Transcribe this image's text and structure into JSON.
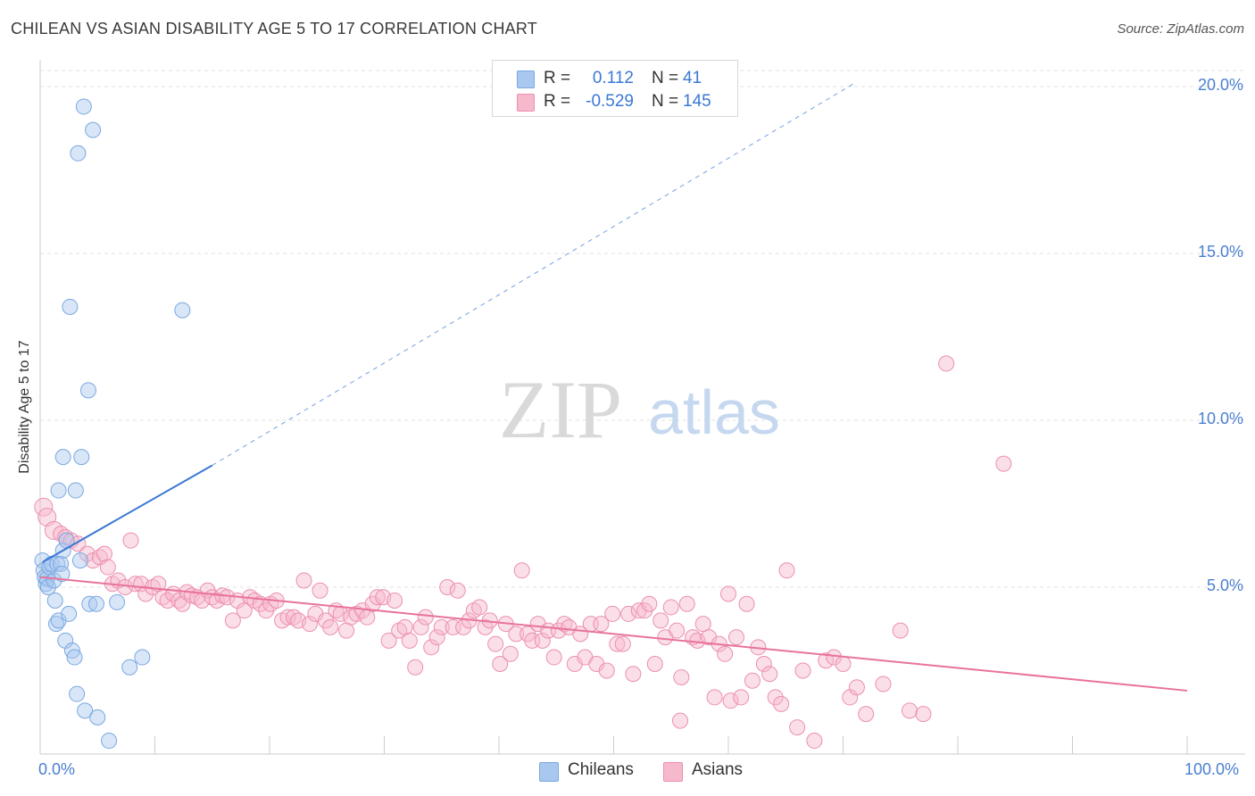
{
  "title": "CHILEAN VS ASIAN DISABILITY AGE 5 TO 17 CORRELATION CHART",
  "source": "Source: ZipAtlas.com",
  "watermark": {
    "zip": "ZIP",
    "atlas": "atlas"
  },
  "legend": {
    "rows": [
      {
        "label": "R =",
        "r": "0.112",
        "n_label": "N =",
        "n": "41",
        "color": "#a9c8f0",
        "border": "#7aa8e0"
      },
      {
        "label": "R =",
        "r": "-0.529",
        "n_label": "N =",
        "n": "145",
        "color": "#f6b8cb",
        "border": "#ec8fae"
      }
    ]
  },
  "bottom_legend": [
    {
      "label": "Chileans",
      "color": "#a9c8f0",
      "border": "#7aa8e0"
    },
    {
      "label": "Asians",
      "color": "#f6b8cb",
      "border": "#ec8fae"
    }
  ],
  "colors": {
    "blue": "#3a78d4",
    "pink": "#e8739c",
    "tick_text": "#4a7fd0",
    "grid": "#e2e2e2"
  },
  "chart_data": {
    "type": "scatter",
    "title": "CHILEAN VS ASIAN DISABILITY AGE 5 TO 17 CORRELATION CHART",
    "xlabel": "",
    "ylabel": "Disability Age 5 to 17",
    "xlim": [
      0,
      100
    ],
    "ylim": [
      0,
      20
    ],
    "x_tick_labels": [
      "0.0%",
      "100.0%"
    ],
    "y_ticks": [
      5,
      10,
      15,
      20
    ],
    "y_tick_labels": [
      "5.0%",
      "10.0%",
      "15.0%",
      "20.0%"
    ],
    "series": [
      {
        "name": "Chileans",
        "r": 0.112,
        "n": 41,
        "trend": {
          "x0": 0.2,
          "y0": 5.75,
          "x1": 15,
          "y1": 8.65,
          "x_dash_end": 71,
          "y_dash_end": 20.1
        },
        "points": [
          [
            0.2,
            5.8
          ],
          [
            0.3,
            5.5
          ],
          [
            0.4,
            5.3
          ],
          [
            0.5,
            5.1
          ],
          [
            0.6,
            5.25
          ],
          [
            0.7,
            5.0
          ],
          [
            0.8,
            5.6
          ],
          [
            1.0,
            5.7
          ],
          [
            1.2,
            5.2
          ],
          [
            1.3,
            4.6
          ],
          [
            1.4,
            3.9
          ],
          [
            1.5,
            5.7
          ],
          [
            1.6,
            4.0
          ],
          [
            1.8,
            5.7
          ],
          [
            1.9,
            5.4
          ],
          [
            2.0,
            6.1
          ],
          [
            2.2,
            3.4
          ],
          [
            2.3,
            6.4
          ],
          [
            2.5,
            4.2
          ],
          [
            2.6,
            13.4
          ],
          [
            2.8,
            3.1
          ],
          [
            3.0,
            2.9
          ],
          [
            3.2,
            1.8
          ],
          [
            3.3,
            18.0
          ],
          [
            3.5,
            5.8
          ],
          [
            3.6,
            8.9
          ],
          [
            3.9,
            1.3
          ],
          [
            4.2,
            10.9
          ],
          [
            4.3,
            4.5
          ],
          [
            4.6,
            18.7
          ],
          [
            4.9,
            4.5
          ],
          [
            5.0,
            1.1
          ],
          [
            3.8,
            19.4
          ],
          [
            2.0,
            8.9
          ],
          [
            1.6,
            7.9
          ],
          [
            3.1,
            7.9
          ],
          [
            6.0,
            0.4
          ],
          [
            6.7,
            4.55
          ],
          [
            7.8,
            2.6
          ],
          [
            8.9,
            2.9
          ],
          [
            12.4,
            13.3
          ]
        ]
      },
      {
        "name": "Asians",
        "r": -0.529,
        "n": 145,
        "trend": {
          "x0": 0,
          "y0": 5.3,
          "x1": 100,
          "y1": 1.9
        },
        "points": [
          [
            0.3,
            7.4
          ],
          [
            0.6,
            7.1
          ],
          [
            1.2,
            6.7
          ],
          [
            1.8,
            6.6
          ],
          [
            2.2,
            6.5
          ],
          [
            2.7,
            6.4
          ],
          [
            3.3,
            6.3
          ],
          [
            4.1,
            6.0
          ],
          [
            4.6,
            5.8
          ],
          [
            5.2,
            5.9
          ],
          [
            5.6,
            6.0
          ],
          [
            5.9,
            5.6
          ],
          [
            6.3,
            5.1
          ],
          [
            6.8,
            5.2
          ],
          [
            7.4,
            5.0
          ],
          [
            7.9,
            6.4
          ],
          [
            8.3,
            5.1
          ],
          [
            8.8,
            5.1
          ],
          [
            9.2,
            4.8
          ],
          [
            9.8,
            5.0
          ],
          [
            10.3,
            5.1
          ],
          [
            10.7,
            4.7
          ],
          [
            11.1,
            4.6
          ],
          [
            11.6,
            4.8
          ],
          [
            12.1,
            4.6
          ],
          [
            12.4,
            4.5
          ],
          [
            12.8,
            4.85
          ],
          [
            13.2,
            4.75
          ],
          [
            13.7,
            4.7
          ],
          [
            14.1,
            4.6
          ],
          [
            14.6,
            4.9
          ],
          [
            15.0,
            4.7
          ],
          [
            15.4,
            4.6
          ],
          [
            15.9,
            4.75
          ],
          [
            16.3,
            4.7
          ],
          [
            16.8,
            4.0
          ],
          [
            17.2,
            4.6
          ],
          [
            17.8,
            4.3
          ],
          [
            18.3,
            4.7
          ],
          [
            18.7,
            4.6
          ],
          [
            19.2,
            4.5
          ],
          [
            19.7,
            4.3
          ],
          [
            20.1,
            4.5
          ],
          [
            20.6,
            4.6
          ],
          [
            21.1,
            4.0
          ],
          [
            21.6,
            4.1
          ],
          [
            22.1,
            4.1
          ],
          [
            22.5,
            4.0
          ],
          [
            23.0,
            5.2
          ],
          [
            23.5,
            3.9
          ],
          [
            24.0,
            4.2
          ],
          [
            24.4,
            4.9
          ],
          [
            24.9,
            4.0
          ],
          [
            25.3,
            3.8
          ],
          [
            25.8,
            4.3
          ],
          [
            26.2,
            4.2
          ],
          [
            26.7,
            3.7
          ],
          [
            27.1,
            4.1
          ],
          [
            27.6,
            4.2
          ],
          [
            28.1,
            4.3
          ],
          [
            28.5,
            4.1
          ],
          [
            29.0,
            4.5
          ],
          [
            29.4,
            4.7
          ],
          [
            29.9,
            4.7
          ],
          [
            30.4,
            3.4
          ],
          [
            30.9,
            4.6
          ],
          [
            31.3,
            3.7
          ],
          [
            31.8,
            3.8
          ],
          [
            32.2,
            3.4
          ],
          [
            32.7,
            2.6
          ],
          [
            33.2,
            3.8
          ],
          [
            33.6,
            4.1
          ],
          [
            34.1,
            3.2
          ],
          [
            34.6,
            3.5
          ],
          [
            35.0,
            3.8
          ],
          [
            35.5,
            5.0
          ],
          [
            36.0,
            3.8
          ],
          [
            36.4,
            4.9
          ],
          [
            36.9,
            3.8
          ],
          [
            37.4,
            4.0
          ],
          [
            37.8,
            4.3
          ],
          [
            38.3,
            4.4
          ],
          [
            38.8,
            3.8
          ],
          [
            39.2,
            4.0
          ],
          [
            39.7,
            3.3
          ],
          [
            40.1,
            2.7
          ],
          [
            40.6,
            3.9
          ],
          [
            41.0,
            3.0
          ],
          [
            41.5,
            3.6
          ],
          [
            42.0,
            5.5
          ],
          [
            42.5,
            3.6
          ],
          [
            42.9,
            3.4
          ],
          [
            43.4,
            3.9
          ],
          [
            43.8,
            3.4
          ],
          [
            44.3,
            3.7
          ],
          [
            44.8,
            2.9
          ],
          [
            45.2,
            3.7
          ],
          [
            45.7,
            3.9
          ],
          [
            46.1,
            3.8
          ],
          [
            46.6,
            2.7
          ],
          [
            47.1,
            3.6
          ],
          [
            47.5,
            2.9
          ],
          [
            48.0,
            3.9
          ],
          [
            48.5,
            2.7
          ],
          [
            48.9,
            3.9
          ],
          [
            49.4,
            2.5
          ],
          [
            49.9,
            4.2
          ],
          [
            50.3,
            3.3
          ],
          [
            50.8,
            3.3
          ],
          [
            51.3,
            4.2
          ],
          [
            51.7,
            2.4
          ],
          [
            52.2,
            4.3
          ],
          [
            52.7,
            4.3
          ],
          [
            53.1,
            4.5
          ],
          [
            53.6,
            2.7
          ],
          [
            54.1,
            4.0
          ],
          [
            54.5,
            3.5
          ],
          [
            55.0,
            4.4
          ],
          [
            55.5,
            3.7
          ],
          [
            55.9,
            2.3
          ],
          [
            56.4,
            4.5
          ],
          [
            56.9,
            3.5
          ],
          [
            57.3,
            3.4
          ],
          [
            57.8,
            3.9
          ],
          [
            58.3,
            3.5
          ],
          [
            58.8,
            1.7
          ],
          [
            59.2,
            3.3
          ],
          [
            59.7,
            3.0
          ],
          [
            60.2,
            1.6
          ],
          [
            60.7,
            3.5
          ],
          [
            61.1,
            1.7
          ],
          [
            61.6,
            4.5
          ],
          [
            62.1,
            2.2
          ],
          [
            62.6,
            3.2
          ],
          [
            63.1,
            2.7
          ],
          [
            63.6,
            2.4
          ],
          [
            64.1,
            1.7
          ],
          [
            64.6,
            1.5
          ],
          [
            65.1,
            5.5
          ],
          [
            66.0,
            0.8
          ],
          [
            66.5,
            2.5
          ],
          [
            67.5,
            0.4
          ],
          [
            68.5,
            2.8
          ],
          [
            69.2,
            2.9
          ],
          [
            70.0,
            2.7
          ],
          [
            70.6,
            1.7
          ],
          [
            71.2,
            2.0
          ],
          [
            72.0,
            1.2
          ],
          [
            73.5,
            2.1
          ],
          [
            75.0,
            3.7
          ],
          [
            75.8,
            1.3
          ],
          [
            77.0,
            1.2
          ],
          [
            79.0,
            11.7
          ],
          [
            84.0,
            8.7
          ],
          [
            55.8,
            1.0
          ],
          [
            60.0,
            4.8
          ]
        ]
      }
    ]
  }
}
